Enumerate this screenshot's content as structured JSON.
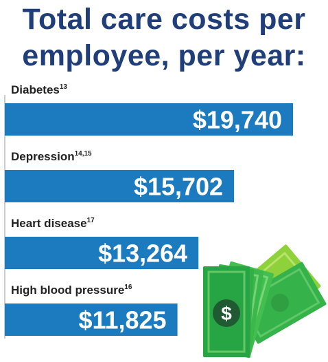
{
  "title_lines": [
    "Total care costs per",
    "employee, per year:"
  ],
  "colors": {
    "title": "#1f3e7a",
    "bar": "#1c7bbf",
    "axis": "#bcbcbc",
    "bar_text": "#ffffff",
    "money_dark": "#27a443",
    "money_light": "#8ed13a"
  },
  "decoration": {
    "icon": "money-bills-icon",
    "symbol": "$"
  },
  "chart_data": {
    "type": "bar",
    "orientation": "horizontal",
    "title": "Total care costs per employee, per year:",
    "categories": [
      "Diabetes",
      "Depression",
      "Heart disease",
      "High blood pressure"
    ],
    "category_footnotes": [
      "13",
      "14,15",
      "17",
      "16"
    ],
    "values": [
      19740,
      15702,
      13264,
      11825
    ],
    "value_labels": [
      "$19,740",
      "$15,702",
      "$13,264",
      "$11,825"
    ],
    "unit": "USD per employee per year",
    "xlim": [
      0,
      19740
    ],
    "grid": false,
    "legend": "none"
  }
}
